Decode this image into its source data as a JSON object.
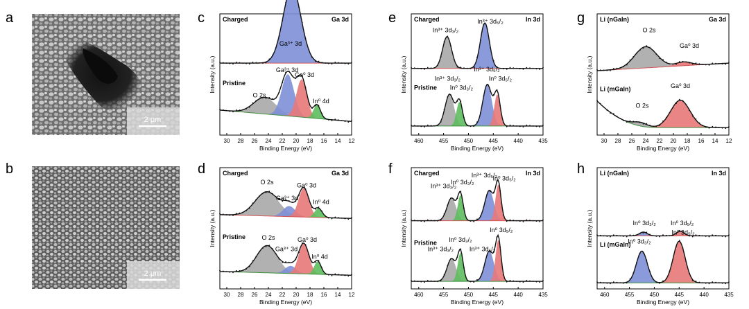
{
  "panel_letters": {
    "a": "a",
    "b": "b",
    "c": "c",
    "d": "d",
    "e": "e",
    "f": "f",
    "g": "g",
    "h": "h"
  },
  "scale_bars": {
    "a": "2 μm",
    "b": "2 μm"
  },
  "colors": {
    "gray": "#a9a9a9",
    "blue": "#7d8fd6",
    "red": "#e87878",
    "green": "#5ebc5e",
    "baseline_red": "#d45555",
    "data": "#111111"
  },
  "chart_data": [
    {
      "id": "c",
      "type": "line",
      "element": "Ga 3d",
      "xlabel": "Binding Energy (eV)",
      "ylabel": "Intensity (a.u.)",
      "xlim": [
        31,
        12
      ],
      "xticks": [
        30,
        28,
        26,
        24,
        22,
        20,
        18,
        16,
        14,
        12
      ],
      "spectra": [
        {
          "name": "Charged",
          "baseline": 0.95,
          "peaks": [
            {
              "label": "Ga³⁺ 3d",
              "center": 20.6,
              "height": 1.0,
              "width": 1.3,
              "color": "blue"
            }
          ],
          "labels": [
            {
              "text": "Ga³⁺ 3d",
              "x": 20.8,
              "y": 1.18
            }
          ]
        },
        {
          "name": "Pristine",
          "baseline": 0.18,
          "tilt": 0.15,
          "peaks": [
            {
              "label": "O 2s",
              "center": 24.5,
              "height": 0.22,
              "width": 1.6,
              "color": "gray"
            },
            {
              "label": "Ga³⁺ 3d",
              "center": 21.2,
              "height": 0.55,
              "width": 0.9,
              "color": "blue"
            },
            {
              "label": "Ga⁰ 3d",
              "center": 19.2,
              "height": 0.5,
              "width": 0.75,
              "color": "red"
            },
            {
              "label": "In⁰ 4d",
              "center": 17.0,
              "height": 0.18,
              "width": 0.5,
              "color": "green"
            }
          ],
          "labels": [
            {
              "text": "Ga³⁺ 3d",
              "x": 21.3,
              "y": 0.83
            },
            {
              "text": "Ga⁰ 3d",
              "x": 18.8,
              "y": 0.77
            },
            {
              "text": "O 2s",
              "x": 25.3,
              "y": 0.5
            },
            {
              "text": "In⁰ 4d",
              "x": 16.4,
              "y": 0.42
            }
          ]
        }
      ]
    },
    {
      "id": "d",
      "type": "line",
      "element": "Ga 3d",
      "xlabel": "Binding Energy (eV)",
      "ylabel": "Intensity (a.u.)",
      "xlim": [
        31,
        12
      ],
      "xticks": [
        30,
        28,
        26,
        24,
        22,
        20,
        18,
        16,
        14,
        12
      ],
      "spectra": [
        {
          "name": "Charged",
          "baseline": 0.93,
          "tilt": 0.05,
          "peaks": [
            {
              "label": "O 2s",
              "center": 24.2,
              "height": 0.32,
              "width": 1.7,
              "color": "gray"
            },
            {
              "label": "Ga³⁺ 3d",
              "center": 21.0,
              "height": 0.14,
              "width": 0.9,
              "color": "blue"
            },
            {
              "label": "Ga⁰ 3d",
              "center": 18.9,
              "height": 0.38,
              "width": 0.75,
              "color": "red"
            },
            {
              "label": "In⁰ 4d",
              "center": 16.8,
              "height": 0.12,
              "width": 0.55,
              "color": "green"
            }
          ],
          "labels": [
            {
              "text": "O 2s",
              "x": 24.2,
              "y": 1.38
            },
            {
              "text": "Ga⁰ 3d",
              "x": 18.5,
              "y": 1.34
            },
            {
              "text": "Ga³⁺ 3d",
              "x": 21.3,
              "y": 1.17
            },
            {
              "text": "In⁰ 4d",
              "x": 16.4,
              "y": 1.12
            }
          ]
        },
        {
          "name": "Pristine",
          "baseline": 0.18,
          "tilt": 0.05,
          "peaks": [
            {
              "label": "O 2s",
              "center": 24.2,
              "height": 0.36,
              "width": 1.5,
              "color": "gray"
            },
            {
              "label": "Ga³⁺ 3d",
              "center": 20.8,
              "height": 0.1,
              "width": 0.8,
              "color": "blue"
            },
            {
              "label": "Ga⁰ 3d",
              "center": 18.9,
              "height": 0.4,
              "width": 0.75,
              "color": "red"
            },
            {
              "label": "In⁰ 4d",
              "center": 16.9,
              "height": 0.17,
              "width": 0.5,
              "color": "green"
            }
          ],
          "labels": [
            {
              "text": "O 2s",
              "x": 24.0,
              "y": 0.65
            },
            {
              "text": "Ga³⁺ 3d",
              "x": 21.4,
              "y": 0.5
            },
            {
              "text": "Ga⁰ 3d",
              "x": 18.4,
              "y": 0.62
            },
            {
              "text": "In⁰ 4d",
              "x": 16.6,
              "y": 0.4
            }
          ]
        }
      ]
    },
    {
      "id": "e",
      "type": "line",
      "element": "In 3d",
      "xlabel": "Binding Energy (eV)",
      "ylabel": "Intensity (a.u.)",
      "xlim": [
        461.5,
        435
      ],
      "xticks": [
        460,
        455,
        450,
        445,
        440,
        435
      ],
      "spectra": [
        {
          "name": "Charged",
          "baseline": 0.88,
          "peaks": [
            {
              "label": "In³⁺ 3d₃/₂",
              "center": 454.3,
              "height": 0.42,
              "width": 0.9,
              "color": "gray"
            },
            {
              "label": "In³⁺ 3d₅/₂",
              "center": 446.7,
              "height": 0.6,
              "width": 0.9,
              "color": "blue"
            }
          ],
          "labels": [
            {
              "text": "In³⁺ 3d₃/₂",
              "x": 454.6,
              "y": 1.36
            },
            {
              "text": "In³⁺ 3d₅/₂",
              "x": 445.6,
              "y": 1.47
            }
          ]
        },
        {
          "name": "Pristine",
          "baseline": 0.12,
          "peaks": [
            {
              "label": "In³⁺ 3d₃/₂",
              "center": 453.8,
              "height": 0.42,
              "width": 0.9,
              "color": "gray"
            },
            {
              "label": "In⁰ 3d₃/₂",
              "center": 451.8,
              "height": 0.32,
              "width": 0.6,
              "color": "green"
            },
            {
              "label": "In³⁺ 3d₅/₂",
              "center": 446.2,
              "height": 0.55,
              "width": 0.9,
              "color": "blue"
            },
            {
              "label": "In⁰ 3d₅/₂",
              "center": 444.2,
              "height": 0.42,
              "width": 0.6,
              "color": "red"
            }
          ],
          "labels": [
            {
              "text": "In³⁺ 3d₃/₂",
              "x": 454.2,
              "y": 0.72
            },
            {
              "text": "In⁰ 3d₃/₂",
              "x": 451.4,
              "y": 0.6
            },
            {
              "text": "In³⁺ 3d₅/₂",
              "x": 446.3,
              "y": 0.84
            },
            {
              "text": "In⁰ 3d₅/₂",
              "x": 443.6,
              "y": 0.72
            }
          ]
        }
      ]
    },
    {
      "id": "f",
      "type": "line",
      "element": "In 3d",
      "xlabel": "Binding Energy (eV)",
      "ylabel": "Intensity (a.u.)",
      "xlim": [
        461.5,
        435
      ],
      "xticks": [
        460,
        455,
        450,
        445,
        440,
        435
      ],
      "spectra": [
        {
          "name": "Charged",
          "baseline": 0.9,
          "peaks": [
            {
              "label": "In³⁺ 3d₃/₂",
              "center": 453.4,
              "height": 0.3,
              "width": 0.9,
              "color": "gray"
            },
            {
              "label": "In⁰ 3d₃/₂",
              "center": 451.6,
              "height": 0.34,
              "width": 0.55,
              "color": "green"
            },
            {
              "label": "In³⁺ 3d₅/₂",
              "center": 445.8,
              "height": 0.4,
              "width": 0.9,
              "color": "blue"
            },
            {
              "label": "In⁰ 3d₅/₂",
              "center": 444.0,
              "height": 0.48,
              "width": 0.55,
              "color": "red"
            }
          ],
          "labels": [
            {
              "text": "In³⁺ 3d₃/₂",
              "x": 455.0,
              "y": 1.33
            },
            {
              "text": "In⁰ 3d₃/₂",
              "x": 451.2,
              "y": 1.38
            },
            {
              "text": "In³⁺ 3d₅/₂",
              "x": 446.8,
              "y": 1.47
            },
            {
              "text": "In⁰ 3d₅/₂",
              "x": 442.8,
              "y": 1.43
            }
          ]
        },
        {
          "name": "Pristine",
          "baseline": 0.1,
          "peaks": [
            {
              "label": "In³⁺ 3d₃/₂",
              "center": 453.4,
              "height": 0.3,
              "width": 0.9,
              "color": "gray"
            },
            {
              "label": "In⁰ 3d₃/₂",
              "center": 451.6,
              "height": 0.38,
              "width": 0.55,
              "color": "green"
            },
            {
              "label": "In³⁺ 3d₅/₂",
              "center": 445.8,
              "height": 0.4,
              "width": 0.9,
              "color": "blue"
            },
            {
              "label": "In⁰ 3d₅/₂",
              "center": 444.0,
              "height": 0.55,
              "width": 0.55,
              "color": "red"
            }
          ],
          "labels": [
            {
              "text": "In³⁺ 3d₃/₂",
              "x": 455.6,
              "y": 0.5
            },
            {
              "text": "In⁰ 3d₃/₂",
              "x": 451.6,
              "y": 0.62
            },
            {
              "text": "In³⁺ 3d₅/₂",
              "x": 447.2,
              "y": 0.5
            },
            {
              "text": "In⁰ 3d₅/₂",
              "x": 443.4,
              "y": 0.75
            }
          ]
        }
      ]
    },
    {
      "id": "g",
      "type": "line",
      "element": "Ga 3d",
      "xlabel": "Binding Energy (eV)",
      "ylabel": "Intensity (a.u.)",
      "xlim": [
        31,
        12
      ],
      "xticks": [
        30,
        28,
        26,
        24,
        22,
        20,
        18,
        16,
        14,
        12
      ],
      "spectra": [
        {
          "name": "Li (nGaIn)",
          "baseline": 0.95,
          "tilt": -0.1,
          "peaks": [
            {
              "label": "O 2s",
              "center": 24.0,
              "height": 0.28,
              "width": 1.6,
              "color": "gray"
            },
            {
              "label": "Ga⁰ 3d",
              "center": 18.5,
              "height": 0.05,
              "width": 1.1,
              "color": "red"
            }
          ],
          "labels": [
            {
              "text": "O 2s",
              "x": 23.5,
              "y": 1.36
            },
            {
              "text": "Ga⁰ 3d",
              "x": 17.7,
              "y": 1.15
            }
          ]
        },
        {
          "name": "Li (mGaIn)",
          "baseline": 0.1,
          "steep": 0.35,
          "peaks": [
            {
              "label": "O 2s",
              "center": 24.8,
              "height": 0.05,
              "width": 1.0,
              "color": "gray"
            },
            {
              "label": "Ga⁰ 3d",
              "center": 19.0,
              "height": 0.36,
              "width": 1.4,
              "color": "red"
            }
          ],
          "labels": [
            {
              "text": "O 2s",
              "x": 24.5,
              "y": 0.36
            },
            {
              "text": "Ga⁰ 3d",
              "x": 19.0,
              "y": 0.62
            }
          ]
        }
      ]
    },
    {
      "id": "h",
      "type": "line",
      "element": "In 3d",
      "xlabel": "Binding Energy (eV)",
      "ylabel": "Intensity (a.u.)",
      "xlim": [
        461.5,
        435
      ],
      "xticks": [
        460,
        455,
        450,
        445,
        440,
        435
      ],
      "spectra": [
        {
          "name": "Li (nGaIn)",
          "baseline": 0.7,
          "peaks": [
            {
              "label": "In⁰ 3d₃/₂",
              "center": 452.2,
              "height": 0.05,
              "width": 0.8,
              "color": "blue"
            },
            {
              "label": "In⁰ 3d₅/₂",
              "center": 444.8,
              "height": 0.06,
              "width": 0.8,
              "color": "red"
            }
          ],
          "labels": [
            {
              "text": "In⁰ 3d₃/₂",
              "x": 452.0,
              "y": 0.84
            },
            {
              "text": "In⁰ 3d₅/₂",
              "x": 444.4,
              "y": 0.84
            }
          ]
        },
        {
          "name": "Li (mGaIn)",
          "baseline": 0.08,
          "peaks": [
            {
              "label": "In⁰ 3d₃/₂",
              "center": 452.5,
              "height": 0.42,
              "width": 1.1,
              "color": "blue"
            },
            {
              "label": "In⁰ 3d₅/₂",
              "center": 445.0,
              "height": 0.55,
              "width": 1.2,
              "color": "red"
            }
          ],
          "labels": [
            {
              "text": "In⁰ 3d₃/₂",
              "x": 453.0,
              "y": 0.6
            },
            {
              "text": "In⁰ 3d₅/₂",
              "x": 444.2,
              "y": 0.72
            }
          ]
        }
      ]
    }
  ]
}
